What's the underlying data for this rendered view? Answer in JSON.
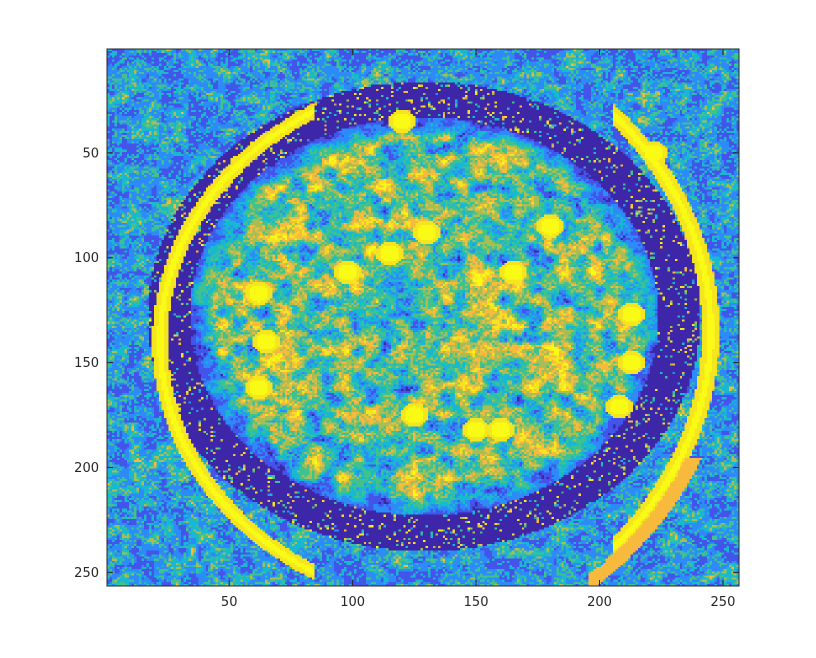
{
  "chart_data": {
    "type": "heatmap",
    "title": "",
    "xlabel": "",
    "ylabel": "",
    "xlim": [
      0.5,
      256.5
    ],
    "ylim": [
      0.5,
      256.5
    ],
    "y_direction": "reversed",
    "grid": false,
    "colorbar": false,
    "x_ticks": [
      50,
      100,
      150,
      200,
      250
    ],
    "y_ticks": [
      50,
      100,
      150,
      200,
      250
    ],
    "x_tick_labels": [
      "50",
      "100",
      "150",
      "200",
      "250"
    ],
    "y_tick_labels": [
      "50",
      "100",
      "150",
      "200",
      "250"
    ],
    "grid_size": [
      256,
      256
    ],
    "colormap": [
      "#3e26a8",
      "#4354ea",
      "#2c8bf8",
      "#19b8d1",
      "#3fc28e",
      "#a6be54",
      "#f8ba3c",
      "#f5e51e",
      "#f9fb15"
    ],
    "features": {
      "center": [
        129,
        128
      ],
      "outer_ring_radius": 128,
      "bright_arc_left_x_range": [
        20,
        80
      ],
      "bright_arc_right_x_range": [
        205,
        256
      ],
      "bright_blobs": [
        {
          "x": 120,
          "y": 35
        },
        {
          "x": 222,
          "y": 50
        },
        {
          "x": 62,
          "y": 117
        },
        {
          "x": 65,
          "y": 140
        },
        {
          "x": 62,
          "y": 162
        },
        {
          "x": 213,
          "y": 127
        },
        {
          "x": 213,
          "y": 150
        },
        {
          "x": 208,
          "y": 171
        },
        {
          "x": 180,
          "y": 85
        },
        {
          "x": 165,
          "y": 107
        },
        {
          "x": 130,
          "y": 88
        },
        {
          "x": 150,
          "y": 182
        },
        {
          "x": 160,
          "y": 182
        },
        {
          "x": 125,
          "y": 175
        },
        {
          "x": 98,
          "y": 107
        },
        {
          "x": 115,
          "y": 98
        }
      ]
    }
  }
}
